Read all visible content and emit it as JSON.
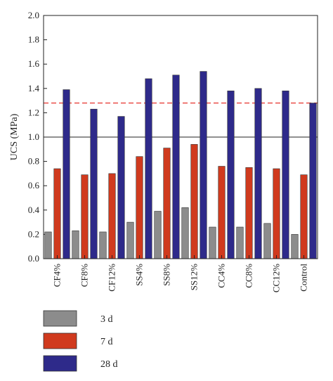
{
  "chart_data": {
    "type": "bar",
    "title": "",
    "xlabel": "",
    "ylabel": "UCS (MPa)",
    "ylim": [
      0,
      2.0
    ],
    "yticks": [
      "0.0",
      "0.2",
      "0.4",
      "0.6",
      "0.8",
      "1.0",
      "1.2",
      "1.4",
      "1.6",
      "1.8",
      "2.0"
    ],
    "categories": [
      "CF4%",
      "CF8%",
      "CF12%",
      "SS4%",
      "SS8%",
      "SS12%",
      "CC4%",
      "CC8%",
      "CC12%",
      "Control"
    ],
    "series": [
      {
        "name": "3 d",
        "color": "#8c8c8c",
        "values": [
          0.22,
          0.23,
          0.22,
          0.3,
          0.39,
          0.42,
          0.26,
          0.26,
          0.29,
          0.2
        ]
      },
      {
        "name": "7 d",
        "color": "#d03a1e",
        "values": [
          0.74,
          0.69,
          0.7,
          0.84,
          0.91,
          0.94,
          0.76,
          0.75,
          0.74,
          0.69
        ]
      },
      {
        "name": "28 d",
        "color": "#2e2a8a",
        "values": [
          1.39,
          1.23,
          1.17,
          1.48,
          1.51,
          1.54,
          1.38,
          1.4,
          1.38,
          1.28
        ]
      }
    ],
    "reference_lines": [
      {
        "style": "dashed",
        "color": "#e8413a",
        "value": 1.28
      },
      {
        "style": "solid",
        "color": "#222222",
        "value": 1.0
      }
    ],
    "grid": false,
    "legend_position": "bottom-left"
  }
}
